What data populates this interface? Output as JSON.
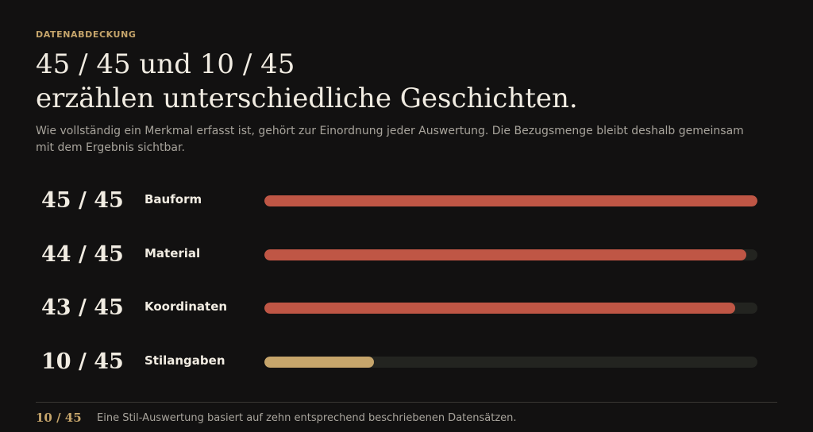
{
  "header": {
    "eyebrow": "DATENABDECKUNG",
    "title_line1": "45 / 45 und 10 / 45",
    "title_line2": "erzählen unterschiedliche Geschichten.",
    "subtitle": "Wie vollständig ein Merkmal erfasst ist, gehört zur Einordnung jeder Auswertung. Die Bezugsmenge bleibt deshalb gemeinsam mit dem Ergebnis sichtbar."
  },
  "colors": {
    "complete": "#bf5645",
    "partial": "#c6a56b",
    "track": "#232420"
  },
  "chart_data": {
    "type": "bar",
    "orientation": "horizontal",
    "categories": [
      "Bauform",
      "Material",
      "Koordinaten",
      "Stilangaben"
    ],
    "values": [
      45,
      44,
      43,
      10
    ],
    "total": 45,
    "value_labels": [
      "45 / 45",
      "44 / 45",
      "43 / 45",
      "10 / 45"
    ],
    "xlim": [
      0,
      45
    ]
  },
  "footer": {
    "fraction": "10 / 45",
    "note": "Eine Stil-Auswertung basiert auf zehn entsprechend beschriebenen Datensätzen."
  }
}
